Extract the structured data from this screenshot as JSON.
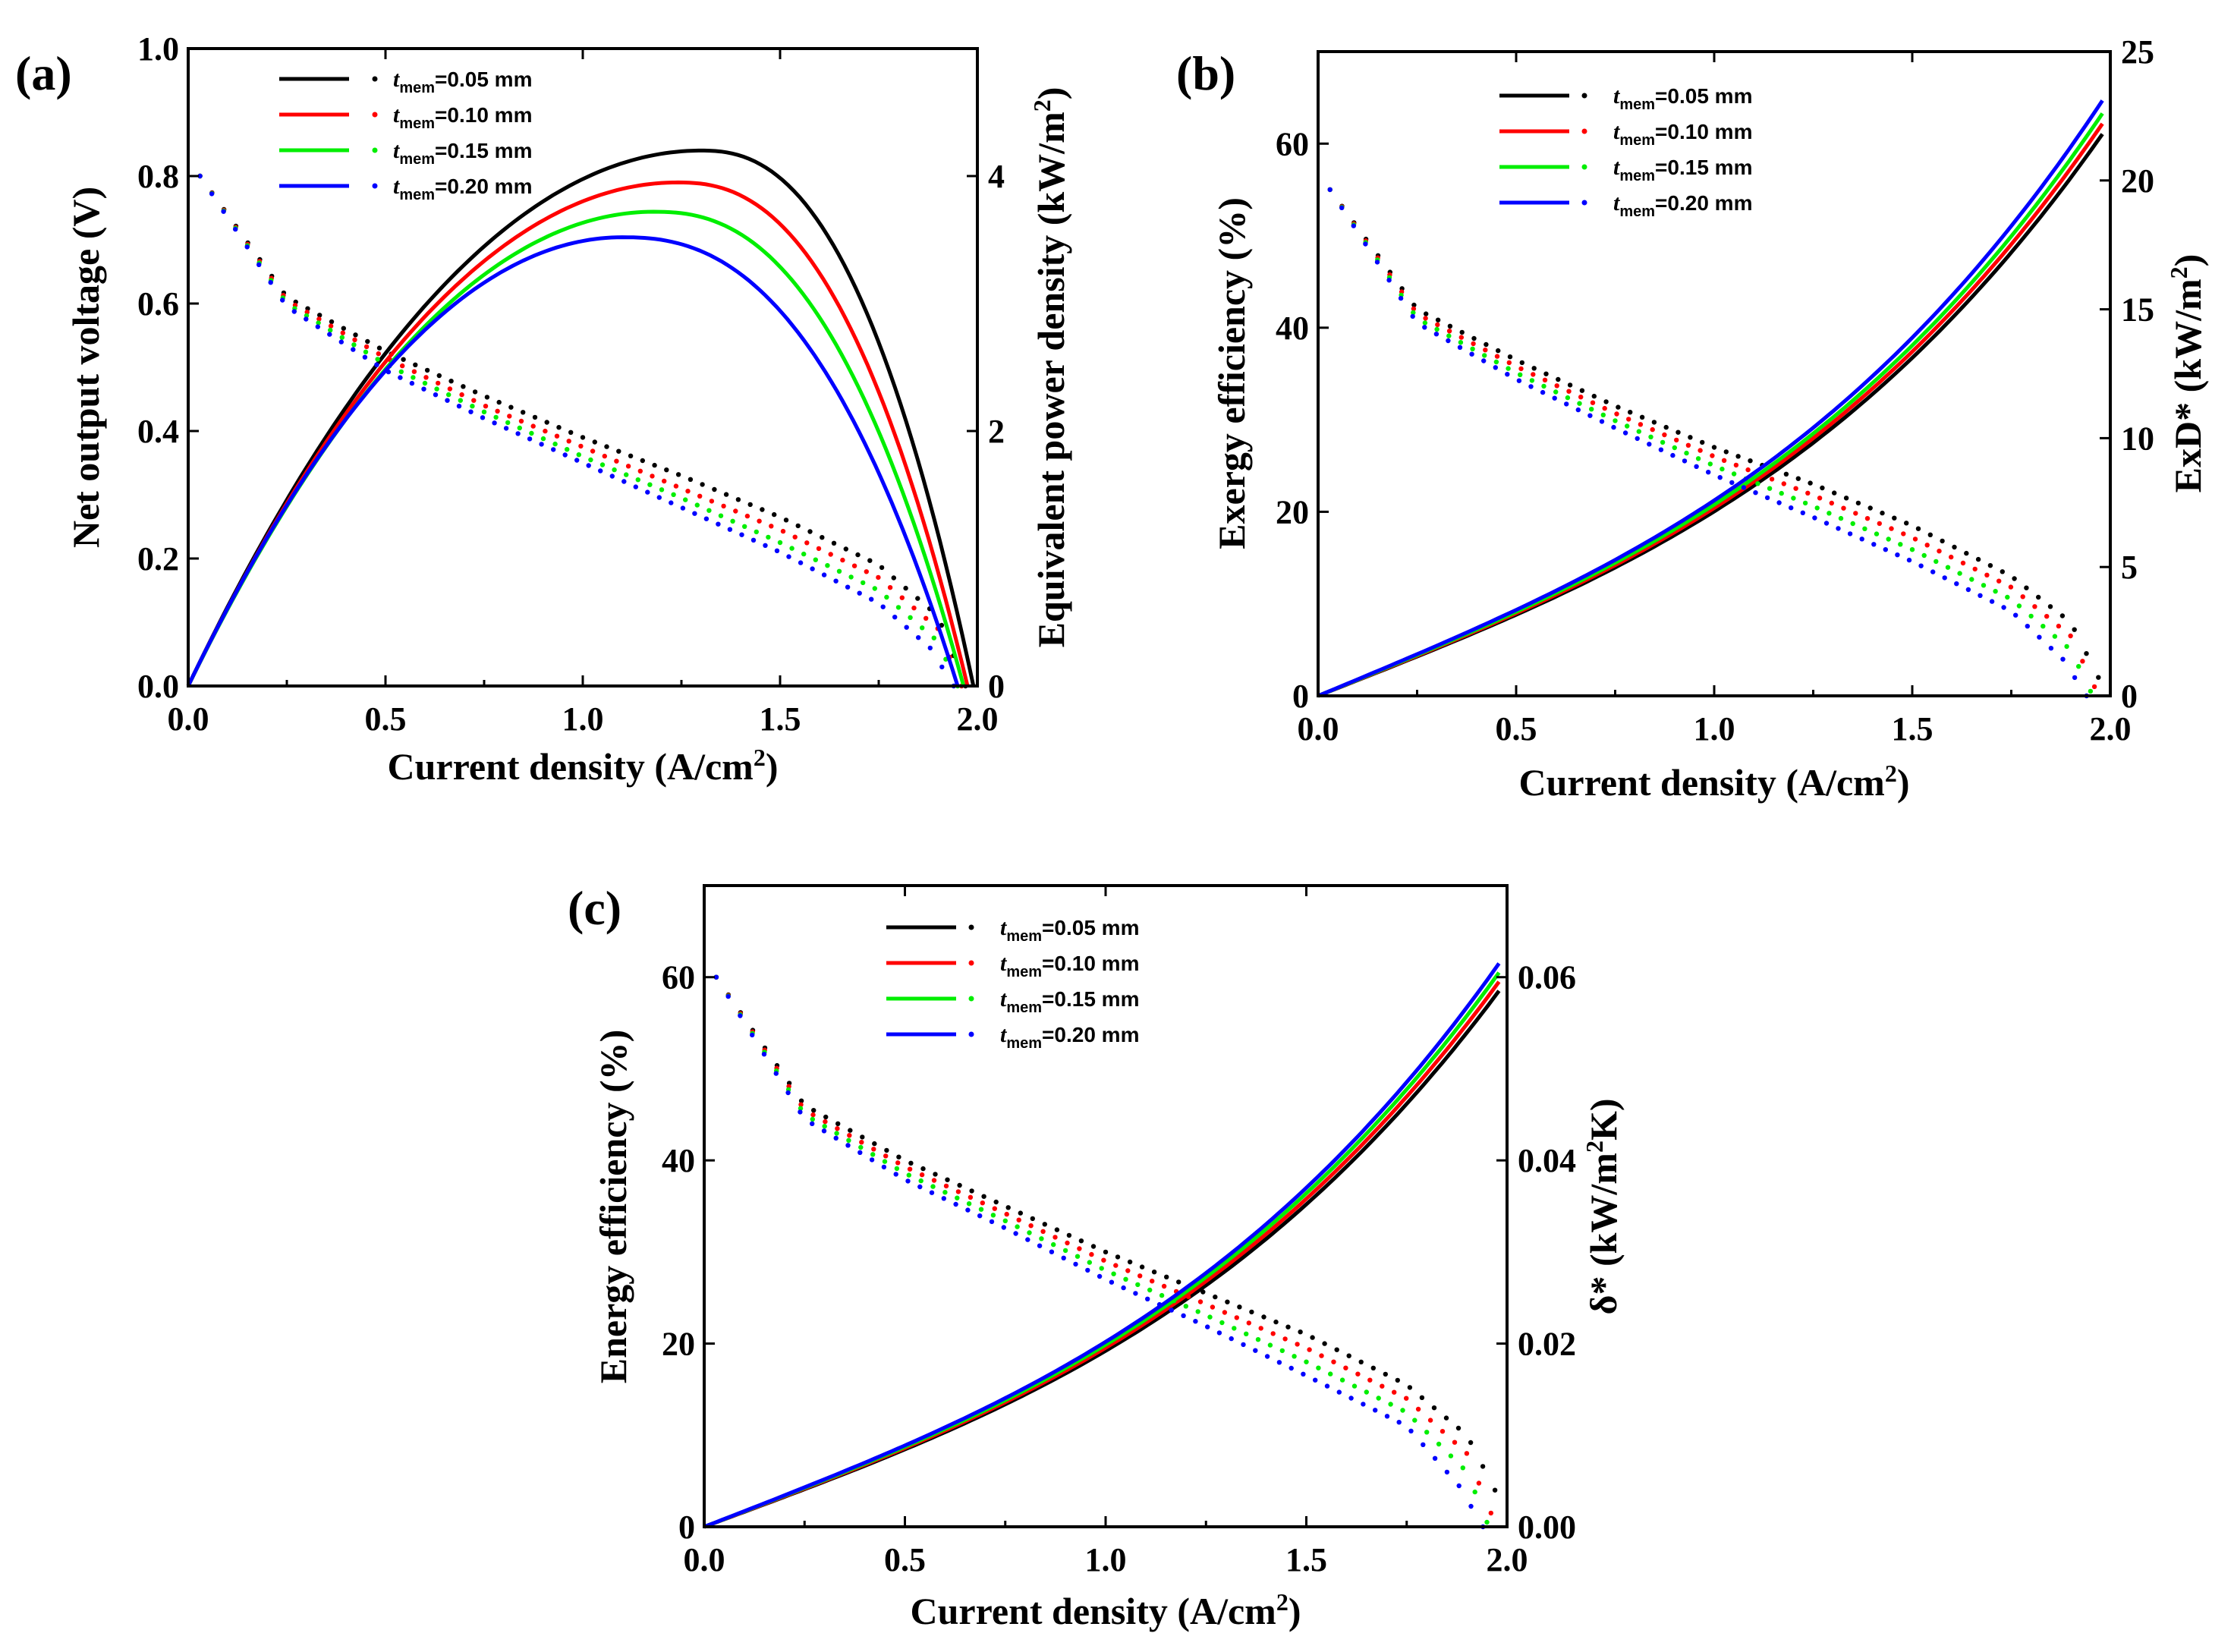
{
  "chart_data": [
    {
      "type": "line",
      "panel_label": "(a)",
      "title": "",
      "xlabel": "Current density (A/cm²)",
      "xlabel_parts": {
        "main": "Current density (A/cm",
        "sup": "2",
        "end": ")"
      },
      "ylabel": "Net output voltage (V)",
      "ylabel_right": "Equivalent power density (kW/m²)",
      "ylabel_right_parts": {
        "main": "Equivalent power density (kW/m",
        "sup": "2",
        "end": ")"
      },
      "xlim": [
        0,
        2.0
      ],
      "ylim": [
        0,
        1.0
      ],
      "ylim_right": [
        0,
        5
      ],
      "xticks": [
        "0.0",
        "0.5",
        "1.0",
        "1.5",
        "2.0"
      ],
      "yticks": [
        "0.0",
        "0.2",
        "0.4",
        "0.6",
        "0.8",
        "1.0"
      ],
      "yticks_right": [
        "0",
        "2",
        "4"
      ],
      "legend_position": "top-center",
      "series": [
        {
          "name": "tmem=0.05 mm",
          "legend_value": "=0.05 mm",
          "color": "#000000",
          "power_peak_x": 1.3,
          "power_peak": 4.2,
          "i_max": 1.99,
          "dotted": {
            "x": [
              0.03,
              0.25,
              0.5,
              0.75,
              1.0,
              1.25,
              1.5,
              1.75,
              1.9,
              1.97
            ],
            "y": [
              0.8,
              0.61,
              0.525,
              0.455,
              0.39,
              0.33,
              0.265,
              0.19,
              0.11,
              0.0
            ]
          }
        },
        {
          "name": "tmem=0.10 mm",
          "legend_value": "=0.10 mm",
          "color": "#ff0000",
          "power_peak_x": 1.24,
          "power_peak": 3.95,
          "i_max": 1.975,
          "dotted": {
            "x": [
              0.03,
              0.25,
              0.5,
              0.75,
              1.0,
              1.25,
              1.5,
              1.75,
              1.9,
              1.96
            ],
            "y": [
              0.8,
              0.605,
              0.515,
              0.44,
              0.375,
              0.31,
              0.245,
              0.17,
              0.09,
              0.0
            ]
          }
        },
        {
          "name": "tmem=0.15 mm",
          "legend_value": "=0.15 mm",
          "color": "#00ee00",
          "power_peak_x": 1.18,
          "power_peak": 3.72,
          "i_max": 1.965,
          "dotted": {
            "x": [
              0.03,
              0.25,
              0.5,
              0.75,
              1.0,
              1.25,
              1.5,
              1.75,
              1.9,
              1.95
            ],
            "y": [
              0.8,
              0.6,
              0.505,
              0.43,
              0.36,
              0.295,
              0.225,
              0.15,
              0.07,
              0.0
            ]
          }
        },
        {
          "name": "tmem=0.20 mm",
          "legend_value": "=0.20 mm",
          "color": "#0000ff",
          "power_peak_x": 1.1,
          "power_peak": 3.52,
          "i_max": 1.95,
          "dotted": {
            "x": [
              0.03,
              0.25,
              0.5,
              0.75,
              1.0,
              1.25,
              1.5,
              1.75,
              1.88,
              1.94
            ],
            "y": [
              0.8,
              0.595,
              0.495,
              0.42,
              0.35,
              0.28,
              0.21,
              0.13,
              0.06,
              0.0
            ]
          }
        }
      ]
    },
    {
      "type": "line",
      "panel_label": "(b)",
      "title": "",
      "xlabel": "Current density (A/cm²)",
      "xlabel_parts": {
        "main": "Current density (A/cm",
        "sup": "2",
        "end": ")"
      },
      "ylabel": "Exergy efficiency (%)",
      "ylabel_right": "ExD* (kW/m²)",
      "ylabel_right_parts": {
        "main": "ExD* (kW/m",
        "sup": "2",
        "end": ")"
      },
      "xlim": [
        0,
        2.0
      ],
      "ylim": [
        0,
        70
      ],
      "ylim_right": [
        0,
        25
      ],
      "xticks": [
        "0.0",
        "0.5",
        "1.0",
        "1.5",
        "2.0"
      ],
      "yticks": [
        "0",
        "20",
        "40",
        "60"
      ],
      "yticks_right": [
        "0",
        "5",
        "10",
        "15",
        "20",
        "25"
      ],
      "legend_position": "top-center",
      "series": [
        {
          "name": "tmem=0.05 mm",
          "legend_value": "=0.05 mm",
          "color": "#000000",
          "exd_end": 21.8,
          "dotted": {
            "x": [
              0.03,
              0.25,
              0.5,
              0.75,
              1.0,
              1.25,
              1.5,
              1.75,
              1.9,
              1.97
            ],
            "y": [
              55,
              42,
              36.5,
              31.5,
              27,
              23,
              18.5,
              13,
              8,
              2
            ]
          }
        },
        {
          "name": "tmem=0.10 mm",
          "legend_value": "=0.10 mm",
          "color": "#ff0000",
          "exd_end": 22.2,
          "dotted": {
            "x": [
              0.03,
              0.25,
              0.5,
              0.75,
              1.0,
              1.25,
              1.5,
              1.75,
              1.9,
              1.96
            ],
            "y": [
              55,
              41.5,
              35.8,
              30.7,
              26,
              21.8,
              17.2,
              11.8,
              6.5,
              1
            ]
          }
        },
        {
          "name": "tmem=0.15 mm",
          "legend_value": "=0.15 mm",
          "color": "#00ee00",
          "exd_end": 22.6,
          "dotted": {
            "x": [
              0.03,
              0.25,
              0.5,
              0.75,
              1.0,
              1.25,
              1.5,
              1.75,
              1.9,
              1.95
            ],
            "y": [
              55,
              41,
              35.1,
              29.9,
              25,
              20.6,
              15.9,
              10.5,
              5,
              0.5
            ]
          }
        },
        {
          "name": "tmem=0.20 mm",
          "legend_value": "=0.20 mm",
          "color": "#0000ff",
          "exd_end": 23.1,
          "dotted": {
            "x": [
              0.03,
              0.25,
              0.5,
              0.75,
              1.0,
              1.25,
              1.5,
              1.75,
              1.88,
              1.94
            ],
            "y": [
              55,
              40.5,
              34.4,
              29.1,
              24,
              19.4,
              14.6,
              9.2,
              4,
              0
            ]
          }
        }
      ]
    },
    {
      "type": "line",
      "panel_label": "(c)",
      "title": "",
      "xlabel": "Current density (A/cm²)",
      "xlabel_parts": {
        "main": "Current density (A/cm",
        "sup": "2",
        "end": ")"
      },
      "ylabel": "Energy efficiency (%)",
      "ylabel_right": "δ* (kW/m²K)",
      "ylabel_right_parts": {
        "main": "δ* (kW/m",
        "sup": "2",
        "end": "K)"
      },
      "xlim": [
        0,
        2.0
      ],
      "ylim": [
        0,
        70
      ],
      "ylim_right": [
        0,
        0.07
      ],
      "xticks": [
        "0.0",
        "0.5",
        "1.0",
        "1.5",
        "2.0"
      ],
      "yticks": [
        "0",
        "20",
        "40",
        "60"
      ],
      "yticks_right": [
        "0.00",
        "0.02",
        "0.04",
        "0.06"
      ],
      "legend_position": "top-center",
      "series": [
        {
          "name": "tmem=0.05 mm",
          "legend_value": "=0.05 mm",
          "color": "#000000",
          "delta_end": 0.0585,
          "dotted": {
            "x": [
              0.03,
              0.25,
              0.5,
              0.75,
              1.0,
              1.25,
              1.5,
              1.75,
              1.9,
              1.97
            ],
            "y": [
              60,
              46,
              40,
              35,
              30,
              25.5,
              21,
              15.5,
              10,
              4
            ]
          }
        },
        {
          "name": "tmem=0.10 mm",
          "legend_value": "=0.10 mm",
          "color": "#ff0000",
          "delta_end": 0.0595,
          "dotted": {
            "x": [
              0.03,
              0.25,
              0.5,
              0.75,
              1.0,
              1.25,
              1.5,
              1.75,
              1.9,
              1.96
            ],
            "y": [
              60,
              45.5,
              39.3,
              34.2,
              29,
              24.3,
              19.5,
              14,
              8,
              1.5
            ]
          }
        },
        {
          "name": "tmem=0.15 mm",
          "legend_value": "=0.15 mm",
          "color": "#00ee00",
          "delta_end": 0.0605,
          "dotted": {
            "x": [
              0.03,
              0.25,
              0.5,
              0.75,
              1.0,
              1.25,
              1.5,
              1.75,
              1.9,
              1.95
            ],
            "y": [
              60,
              45,
              38.6,
              33.4,
              28,
              23.1,
              18,
              12.5,
              6,
              0.5
            ]
          }
        },
        {
          "name": "tmem=0.20 mm",
          "legend_value": "=0.20 mm",
          "color": "#0000ff",
          "delta_end": 0.0615,
          "dotted": {
            "x": [
              0.03,
              0.25,
              0.5,
              0.75,
              1.0,
              1.25,
              1.5,
              1.75,
              1.88,
              1.94
            ],
            "y": [
              60,
              44.5,
              37.9,
              32.6,
              27,
              21.9,
              16.5,
              11,
              4.5,
              0
            ]
          }
        }
      ]
    }
  ],
  "legend": {
    "t_symbol": "t",
    "t_subscript": "mem"
  }
}
